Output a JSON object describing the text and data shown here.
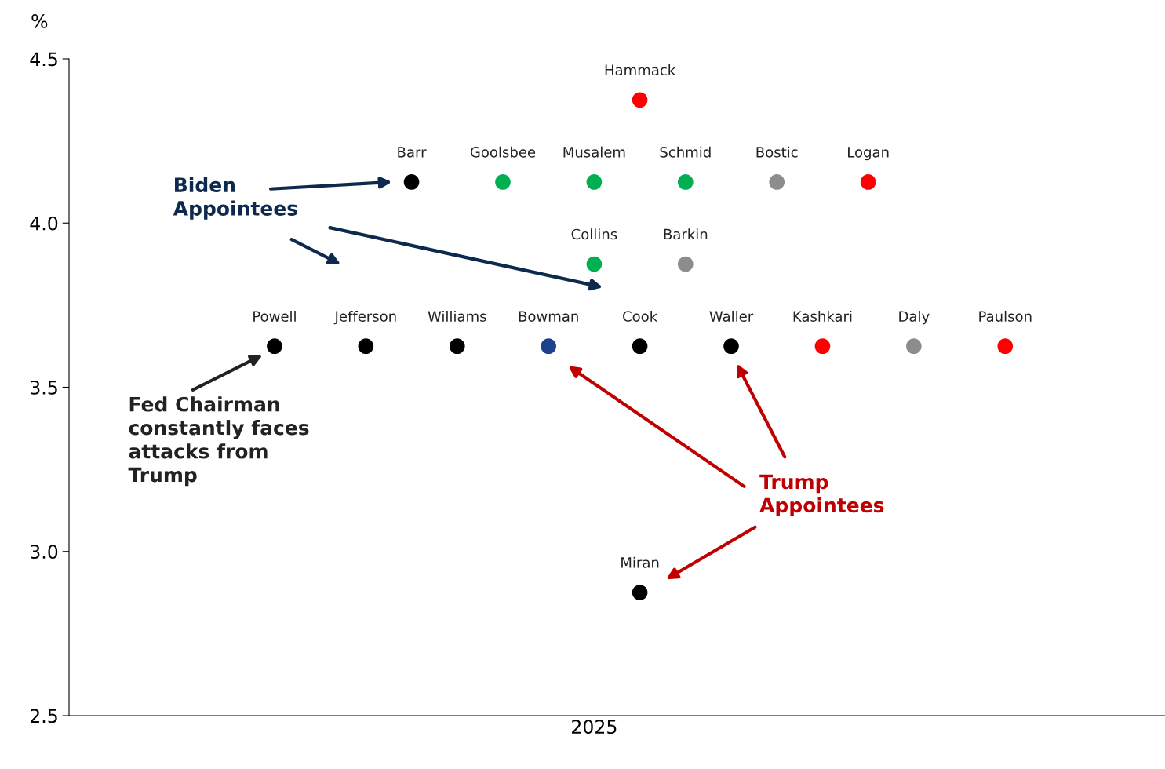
{
  "chart_data": {
    "type": "scatter",
    "ylabel": "%",
    "categories": [
      null,
      null,
      null,
      null,
      null,
      null,
      null,
      null,
      null,
      null,
      null,
      "2025",
      null,
      null,
      null,
      null,
      null,
      null,
      null,
      null,
      null,
      null,
      null,
      null
    ],
    "series": [
      {
        "values": [
          null,
          null,
          null,
          null,
          null,
          null,
          null,
          null,
          null,
          null,
          null,
          null,
          4.375,
          null,
          null,
          null,
          null,
          null,
          null,
          null,
          null,
          null,
          null,
          null
        ],
        "colors": [
          null,
          null,
          null,
          null,
          null,
          null,
          null,
          null,
          null,
          null,
          null,
          null,
          "#ff0000",
          null,
          null,
          null,
          null,
          null,
          null,
          null,
          null,
          null,
          null,
          null
        ],
        "value_labels": [
          null,
          null,
          null,
          null,
          null,
          null,
          null,
          null,
          null,
          null,
          null,
          null,
          "Hammack",
          null,
          null,
          null,
          null,
          null,
          null,
          null,
          null,
          null,
          null,
          null
        ]
      },
      {
        "values": [
          null,
          null,
          null,
          null,
          null,
          null,
          null,
          4.125,
          null,
          4.125,
          null,
          4.125,
          null,
          4.125,
          null,
          4.125,
          null,
          4.125,
          null,
          null,
          null,
          null,
          null,
          null
        ],
        "colors": [
          null,
          null,
          null,
          null,
          null,
          null,
          null,
          "#000000",
          null,
          "#00b050",
          null,
          "#00b050",
          null,
          "#00b050",
          null,
          "#8c8c8c",
          null,
          "#ff0000",
          null,
          null,
          null,
          null,
          null,
          null
        ],
        "value_labels": [
          null,
          null,
          null,
          null,
          null,
          null,
          null,
          "Barr",
          null,
          "Goolsbee",
          null,
          "Musalem",
          null,
          "Schmid",
          null,
          "Bostic",
          null,
          "Logan",
          null,
          null,
          null,
          null,
          null,
          null
        ]
      },
      {
        "values": [
          null,
          null,
          null,
          null,
          null,
          null,
          null,
          null,
          null,
          null,
          null,
          3.875,
          null,
          3.875,
          null,
          null,
          null,
          null,
          null,
          null,
          null,
          null,
          null,
          null
        ],
        "colors": [
          null,
          null,
          null,
          null,
          null,
          null,
          null,
          null,
          null,
          null,
          null,
          "#00b050",
          null,
          "#8c8c8c",
          null,
          null,
          null,
          null,
          null,
          null,
          null,
          null,
          null,
          null
        ],
        "value_labels": [
          null,
          null,
          null,
          null,
          null,
          null,
          null,
          null,
          null,
          null,
          null,
          "Collins",
          null,
          "Barkin",
          null,
          null,
          null,
          null,
          null,
          null,
          null,
          null,
          null,
          null
        ]
      },
      {
        "values": [
          null,
          null,
          null,
          null,
          3.625,
          null,
          3.625,
          null,
          3.625,
          null,
          3.625,
          null,
          3.625,
          null,
          3.625,
          null,
          3.625,
          null,
          3.625,
          null,
          3.625,
          null,
          null,
          null
        ],
        "colors": [
          null,
          null,
          null,
          null,
          "#000000",
          null,
          "#000000",
          null,
          "#000000",
          null,
          "#1f3f8f",
          null,
          "#000000",
          null,
          "#000000",
          null,
          "#ff0000",
          null,
          "#8c8c8c",
          null,
          "#ff0000",
          null,
          null,
          null
        ],
        "value_labels": [
          null,
          null,
          null,
          null,
          "Powell",
          null,
          "Jefferson",
          null,
          "Williams",
          null,
          "Bowman",
          null,
          "Cook",
          null,
          "Waller",
          null,
          "Kashkari",
          null,
          "Daly",
          null,
          "Paulson",
          null,
          null,
          null
        ]
      },
      {
        "values": [
          null,
          null,
          null,
          null,
          null,
          null,
          null,
          null,
          null,
          null,
          null,
          null,
          2.875,
          null,
          null,
          null,
          null,
          null,
          null,
          null,
          null,
          null,
          null,
          null
        ],
        "colors": [
          null,
          null,
          null,
          null,
          null,
          null,
          null,
          null,
          null,
          null,
          null,
          null,
          "#000000",
          null,
          null,
          null,
          null,
          null,
          null,
          null,
          null,
          null,
          null,
          null
        ],
        "value_labels": [
          null,
          null,
          null,
          null,
          null,
          null,
          null,
          null,
          null,
          null,
          null,
          null,
          "Miran",
          null,
          null,
          null,
          null,
          null,
          null,
          null,
          null,
          null,
          null,
          null
        ]
      }
    ],
    "ylim": [
      2.5,
      4.5
    ],
    "yticks": [
      {
        "value": 2.5,
        "label": "2.5"
      },
      {
        "value": 3,
        "label": "3.0"
      },
      {
        "value": 3.5,
        "label": "3.5"
      },
      {
        "value": 4,
        "label": "4.0"
      },
      {
        "value": 4.5,
        "label": "4.5"
      }
    ],
    "marker": "circle",
    "grid": false,
    "legend": false,
    "annotations": [
      "Biden\nAppointees",
      "Trump\nAppointees",
      "Fed Chairman\nconstantly faces\nattacks from\nTrump"
    ]
  }
}
